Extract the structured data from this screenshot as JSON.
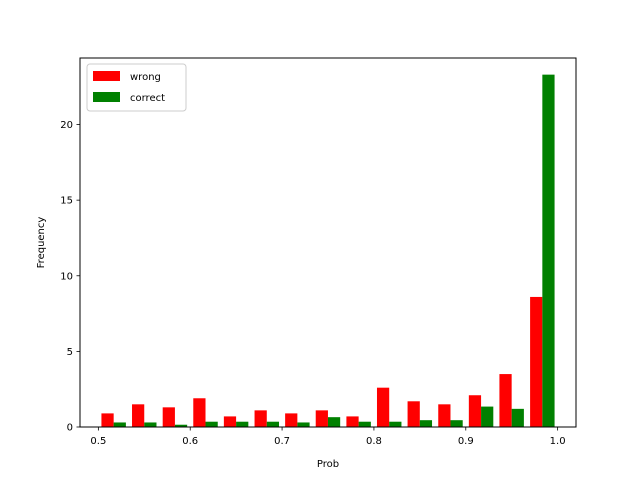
{
  "chart_data": {
    "type": "bar",
    "xlabel": "Prob",
    "ylabel": "Frequency",
    "xlim": [
      0.48,
      1.02
    ],
    "ylim": [
      0,
      24.4
    ],
    "xticks": [
      "0.5",
      "0.6",
      "0.7",
      "0.8",
      "0.9",
      "1.0"
    ],
    "yticks": [
      "0",
      "5",
      "10",
      "15",
      "20"
    ],
    "legend_position": "top-left",
    "grid": false,
    "bin_starts": [
      0.5,
      0.5333,
      0.5667,
      0.6,
      0.6333,
      0.6667,
      0.7,
      0.7333,
      0.7667,
      0.8,
      0.8333,
      0.8667,
      0.9,
      0.9333,
      0.9667
    ],
    "bin_width": 0.0333,
    "series": [
      {
        "name": "wrong",
        "color": "#ff0000",
        "values": [
          0.9,
          1.5,
          1.3,
          1.9,
          0.7,
          1.1,
          0.9,
          1.1,
          0.7,
          2.6,
          1.7,
          1.5,
          2.1,
          3.5,
          8.6
        ]
      },
      {
        "name": "correct",
        "color": "#008000",
        "values": [
          0.3,
          0.3,
          0.15,
          0.35,
          0.35,
          0.35,
          0.3,
          0.65,
          0.35,
          0.35,
          0.45,
          0.45,
          1.35,
          1.2,
          23.3
        ]
      }
    ]
  }
}
